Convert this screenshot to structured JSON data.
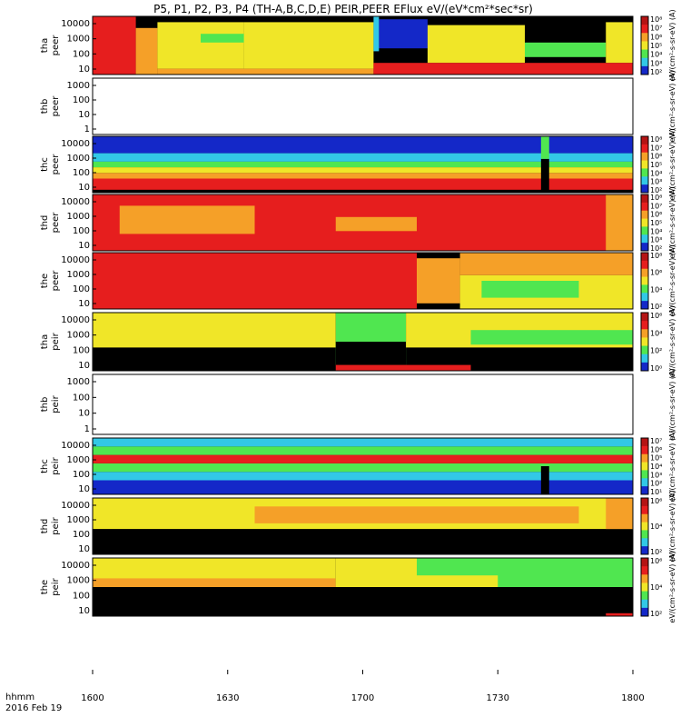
{
  "chart_data": {
    "type": "heatmap",
    "title": "P5, P1, P2, P3, P4 (TH-A,B,C,D,E) PEIR,PEER EFlux eV/(eV*cm²*sec*sr)",
    "x_axis": {
      "ticks": [
        "1600",
        "1630",
        "1700",
        "1730",
        "1800"
      ],
      "label_line1": "hhmm",
      "label_line2": "2016 Feb 19"
    },
    "colors": {
      "black": "#000000",
      "blue": "#1428c8",
      "cyan": "#32c8e6",
      "green": "#50e650",
      "yellow": "#f0e628",
      "orange": "#f5a028",
      "red": "#e61e1e",
      "darkred": "#b41414"
    },
    "panels": [
      {
        "id": "tha_peer",
        "ylabel": [
          "tha",
          "peer"
        ],
        "yticks": [
          "10",
          "100",
          "1000",
          "10000"
        ],
        "colorbar": {
          "ticks": [
            "10²",
            "10³",
            "10⁴",
            "10⁵",
            "10⁶",
            "10⁷",
            "10⁸"
          ],
          "label": "eV/(cm²-s-sr-eV) (A)"
        },
        "blocks": [
          [
            "red",
            0,
            0.08,
            0,
            1
          ],
          [
            "orange",
            0.08,
            0.12,
            0,
            0.8
          ],
          [
            "yellow",
            0.12,
            0.28,
            0.1,
            0.9
          ],
          [
            "green",
            0.2,
            0.3,
            0.55,
            0.7
          ],
          [
            "yellow",
            0.28,
            0.52,
            0.1,
            0.9
          ],
          [
            "orange",
            0.12,
            0.52,
            0,
            0.1
          ],
          [
            "blue",
            0.53,
            0.62,
            0.45,
            0.95
          ],
          [
            "cyan",
            0.52,
            0.53,
            0.4,
            1
          ],
          [
            "yellow",
            0.62,
            0.8,
            0.2,
            0.85
          ],
          [
            "green",
            0.8,
            0.95,
            0.3,
            0.55
          ],
          [
            "yellow",
            0.95,
            1,
            0.2,
            0.9
          ],
          [
            "red",
            0.52,
            1,
            0,
            0.2
          ]
        ]
      },
      {
        "id": "thb_peer",
        "ylabel": [
          "thb",
          "peer"
        ],
        "yticks": [
          "1",
          "10",
          "100",
          "1000"
        ],
        "colorbar": {
          "ticks": [],
          "label": "eV/(cm²-s-sr-eV) (A)"
        },
        "blocks": []
      },
      {
        "id": "thc_peer",
        "ylabel": [
          "thc",
          "peer"
        ],
        "yticks": [
          "10",
          "100",
          "1000",
          "10000"
        ],
        "colorbar": {
          "ticks": [
            "10²",
            "10³",
            "10⁴",
            "10⁵",
            "10⁶",
            "10⁷",
            "10⁸"
          ],
          "label": "eV/(cm²-s-sr-eV) (A)"
        },
        "blocks": [
          [
            "blue",
            0,
            1,
            0.7,
            1
          ],
          [
            "cyan",
            0,
            1,
            0.55,
            0.7
          ],
          [
            "green",
            0,
            1,
            0.45,
            0.55
          ],
          [
            "yellow",
            0,
            1,
            0.35,
            0.45
          ],
          [
            "orange",
            0,
            1,
            0.25,
            0.35
          ],
          [
            "red",
            0,
            1,
            0.05,
            0.25
          ],
          [
            "black",
            0,
            1,
            0,
            0.05
          ],
          [
            "black",
            0.83,
            0.845,
            0,
            0.6
          ],
          [
            "green",
            0.83,
            0.845,
            0.6,
            1
          ]
        ]
      },
      {
        "id": "thd_peer",
        "ylabel": [
          "thd",
          "peer"
        ],
        "yticks": [
          "10",
          "100",
          "1000",
          "10000"
        ],
        "colorbar": {
          "ticks": [
            "10²",
            "10³",
            "10⁴",
            "10⁵",
            "10⁶",
            "10⁷",
            "10⁸"
          ],
          "label": "eV/(cm²-s-sr-eV) (A)"
        },
        "blocks": [
          [
            "red",
            0,
            1,
            0,
            1
          ],
          [
            "orange",
            0.05,
            0.3,
            0.3,
            0.8
          ],
          [
            "orange",
            0.45,
            0.6,
            0.35,
            0.6
          ],
          [
            "orange",
            0.95,
            1,
            0,
            1
          ]
        ]
      },
      {
        "id": "the_peer",
        "ylabel": [
          "the",
          "peer"
        ],
        "yticks": [
          "10",
          "100",
          "1000",
          "10000"
        ],
        "colorbar": {
          "ticks": [
            "10²",
            "10⁴",
            "10⁶",
            "10⁸"
          ],
          "label": "eV/(cm²-s-sr-eV) (A)"
        },
        "blocks": [
          [
            "red",
            0,
            0.6,
            0,
            1
          ],
          [
            "orange",
            0.6,
            0.68,
            0.1,
            0.9
          ],
          [
            "yellow",
            0.68,
            1,
            0,
            0.6
          ],
          [
            "green",
            0.72,
            0.9,
            0.2,
            0.5
          ],
          [
            "orange",
            0.68,
            1,
            0.6,
            1
          ]
        ]
      },
      {
        "id": "tha_peir",
        "ylabel": [
          "tha",
          "peir"
        ],
        "yticks": [
          "10",
          "100",
          "1000",
          "10000"
        ],
        "colorbar": {
          "ticks": [
            "10⁰",
            "10²",
            "10⁴",
            "10⁶"
          ],
          "label": "eV/(cm²-s-sr-eV) (A)"
        },
        "blocks": [
          [
            "black",
            0,
            1,
            0,
            0.4
          ],
          [
            "yellow",
            0,
            0.45,
            0.4,
            1
          ],
          [
            "green",
            0.45,
            0.58,
            0.1,
            1
          ],
          [
            "black",
            0.45,
            0.58,
            0.1,
            0.5
          ],
          [
            "red",
            0.45,
            0.7,
            0,
            0.1
          ],
          [
            "yellow",
            0.58,
            1,
            0.4,
            1
          ],
          [
            "green",
            0.7,
            1,
            0.45,
            0.7
          ]
        ]
      },
      {
        "id": "thb_peir",
        "ylabel": [
          "thb",
          "peir"
        ],
        "yticks": [
          "1",
          "10",
          "100",
          "1000"
        ],
        "colorbar": {
          "ticks": [],
          "label": "eV/(cm²-s-sr-eV) (A)"
        },
        "blocks": []
      },
      {
        "id": "thc_peir",
        "ylabel": [
          "thc",
          "peir"
        ],
        "yticks": [
          "10",
          "100",
          "1000",
          "10000"
        ],
        "colorbar": {
          "ticks": [
            "10¹",
            "10²",
            "10³",
            "10⁴",
            "10⁵",
            "10⁶",
            "10⁷"
          ],
          "label": "eV/(cm²-s-sr-eV) (A)"
        },
        "blocks": [
          [
            "blue",
            0,
            1,
            0,
            0.25
          ],
          [
            "cyan",
            0,
            1,
            0.25,
            0.4
          ],
          [
            "green",
            0,
            1,
            0.4,
            0.55
          ],
          [
            "red",
            0,
            1,
            0.55,
            0.7
          ],
          [
            "green",
            0,
            1,
            0.7,
            0.85
          ],
          [
            "cyan",
            0,
            1,
            0.85,
            1
          ],
          [
            "black",
            0.83,
            0.845,
            0,
            0.5
          ]
        ]
      },
      {
        "id": "thd_peir",
        "ylabel": [
          "thd",
          "peir"
        ],
        "yticks": [
          "10",
          "100",
          "1000",
          "10000"
        ],
        "colorbar": {
          "ticks": [
            "10²",
            "10⁴",
            "10⁶"
          ],
          "label": "eV/(cm²-s-sr-eV) (A)"
        },
        "blocks": [
          [
            "black",
            0,
            1,
            0,
            0.45
          ],
          [
            "yellow",
            0,
            1,
            0.45,
            1
          ],
          [
            "orange",
            0.3,
            0.9,
            0.55,
            0.85
          ],
          [
            "orange",
            0.95,
            1,
            0.45,
            1
          ]
        ]
      },
      {
        "id": "the_peir",
        "ylabel": [
          "the",
          "peir"
        ],
        "yticks": [
          "10",
          "100",
          "1000",
          "10000"
        ],
        "colorbar": {
          "ticks": [
            "10²",
            "10⁴",
            "10⁶"
          ],
          "label": "eV/(cm²-s-sr-eV) (A)"
        },
        "blocks": [
          [
            "black",
            0,
            1,
            0,
            0.5
          ],
          [
            "yellow",
            0,
            0.45,
            0.5,
            1
          ],
          [
            "orange",
            0,
            0.45,
            0.5,
            0.65
          ],
          [
            "yellow",
            0.45,
            0.65,
            0.5,
            1
          ],
          [
            "green",
            0.6,
            1,
            0.5,
            1
          ],
          [
            "yellow",
            0.6,
            0.75,
            0.5,
            0.7
          ],
          [
            "black",
            0.6,
            0.75,
            0,
            0.5
          ],
          [
            "red",
            0.95,
            1,
            0,
            0.05
          ]
        ]
      }
    ]
  }
}
